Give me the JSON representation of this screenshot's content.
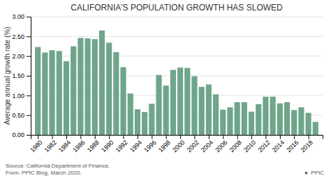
{
  "chart_data": {
    "type": "bar",
    "title": "CALIFORNIA'S POPULATION GROWTH HAS SLOWED",
    "y_label": "Average annual growth rate (%)",
    "annotations": [
      "Source: California Department of Finance.",
      "From: PPIC Blog, March 2020.",
      "●  PPIC"
    ],
    "x": [
      1980,
      1981,
      1982,
      1983,
      1984,
      1985,
      1986,
      1987,
      1988,
      1989,
      1990,
      1991,
      1992,
      1993,
      1994,
      1995,
      1996,
      1997,
      1998,
      1999,
      2000,
      2001,
      2002,
      2003,
      2004,
      2005,
      2006,
      2007,
      2008,
      2009,
      2010,
      2011,
      2012,
      2013,
      2014,
      2015,
      2016,
      2017,
      2018,
      2019
    ],
    "values": [
      2.23,
      2.09,
      2.15,
      2.13,
      1.87,
      2.25,
      2.46,
      2.45,
      2.43,
      2.65,
      2.34,
      2.1,
      1.72,
      1.05,
      0.65,
      0.58,
      0.79,
      1.52,
      1.25,
      1.65,
      1.71,
      1.7,
      1.49,
      1.22,
      1.28,
      1.03,
      0.64,
      0.7,
      0.83,
      0.83,
      0.59,
      0.78,
      0.97,
      0.97,
      0.8,
      0.83,
      0.63,
      0.7,
      0.56,
      0.33
    ],
    "color": "#6fa58a",
    "xlim": [
      1979,
      2020
    ],
    "xticks": [
      1980,
      1982,
      1984,
      1986,
      1988,
      1990,
      1992,
      1994,
      1996,
      1998,
      2000,
      2002,
      2004,
      2006,
      2008,
      2010,
      2012,
      2014,
      2016,
      2018
    ],
    "ylim": [
      0,
      3.0
    ],
    "yticks": [
      {
        "value": 0.0,
        "label": "0.00"
      },
      {
        "value": 0.5,
        "label": "0.50"
      },
      {
        "value": 1.0,
        "label": "1.00"
      },
      {
        "value": 1.5,
        "label": "1.50"
      },
      {
        "value": 2.0,
        "label": "2.00"
      },
      {
        "value": 2.5,
        "label": "2.50"
      },
      {
        "value": 3.0,
        "label": "3.00"
      }
    ],
    "grid": true
  }
}
